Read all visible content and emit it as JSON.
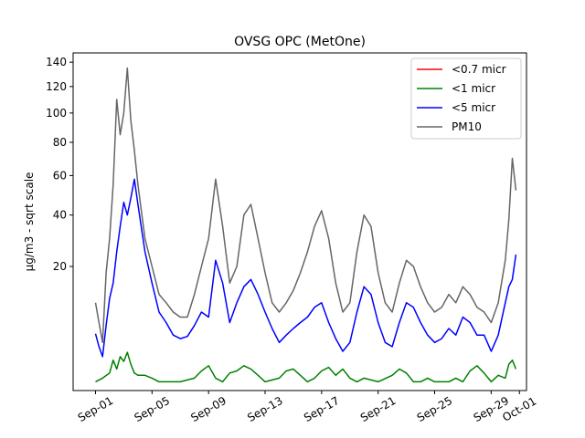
{
  "chart_data": {
    "type": "line",
    "title": "OVSG OPC (MetOne)",
    "xlabel": "",
    "ylabel": "µg/m3 - sqrt scale",
    "y_scale": "sqrt",
    "ylim": [
      0,
      148
    ],
    "y_ticks": [
      20,
      40,
      60,
      80,
      100,
      120,
      140
    ],
    "xlim": [
      "2021-08-30T10:00",
      "2021-10-01T12:00"
    ],
    "x_ticks": [
      "Sep-01",
      "Sep-05",
      "Sep-09",
      "Sep-13",
      "Sep-17",
      "Sep-21",
      "Sep-25",
      "Sep-29",
      "Oct-01"
    ],
    "x_tick_dates": [
      "2021-09-01",
      "2021-09-05",
      "2021-09-09",
      "2021-09-13",
      "2021-09-17",
      "2021-09-21",
      "2021-09-25",
      "2021-09-29",
      "2021-10-01"
    ],
    "grid": false,
    "legend_position": "top-right",
    "series": [
      {
        "name": "<0.7 micr",
        "color": "#ff0000",
        "x": [],
        "values": []
      },
      {
        "name": "<1 micr",
        "color": "#008000",
        "x": [
          "2021-09-01T00:00",
          "2021-09-01T12:00",
          "2021-09-02T00:00",
          "2021-09-02T06:00",
          "2021-09-02T12:00",
          "2021-09-02T18:00",
          "2021-09-03T00:00",
          "2021-09-03T06:00",
          "2021-09-03T12:00",
          "2021-09-03T18:00",
          "2021-09-04T00:00",
          "2021-09-04T12:00",
          "2021-09-05T00:00",
          "2021-09-05T12:00",
          "2021-09-06T00:00",
          "2021-09-07T00:00",
          "2021-09-08T00:00",
          "2021-09-08T12:00",
          "2021-09-09T00:00",
          "2021-09-09T12:00",
          "2021-09-10T00:00",
          "2021-09-10T12:00",
          "2021-09-11T00:00",
          "2021-09-11T12:00",
          "2021-09-12T00:00",
          "2021-09-12T12:00",
          "2021-09-13T00:00",
          "2021-09-14T00:00",
          "2021-09-14T12:00",
          "2021-09-15T00:00",
          "2021-09-15T12:00",
          "2021-09-16T00:00",
          "2021-09-16T12:00",
          "2021-09-17T00:00",
          "2021-09-17T12:00",
          "2021-09-18T00:00",
          "2021-09-18T12:00",
          "2021-09-19T00:00",
          "2021-09-19T12:00",
          "2021-09-20T00:00",
          "2021-09-21T00:00",
          "2021-09-22T00:00",
          "2021-09-22T12:00",
          "2021-09-23T00:00",
          "2021-09-23T12:00",
          "2021-09-24T00:00",
          "2021-09-24T12:00",
          "2021-09-25T00:00",
          "2021-09-26T00:00",
          "2021-09-26T12:00",
          "2021-09-27T00:00",
          "2021-09-27T12:00",
          "2021-09-28T00:00",
          "2021-09-28T12:00",
          "2021-09-29T00:00",
          "2021-09-29T12:00",
          "2021-09-30T00:00",
          "2021-09-30T06:00",
          "2021-09-30T12:00",
          "2021-09-30T18:00"
        ],
        "values": [
          0.1,
          0.2,
          0.4,
          1.2,
          0.6,
          1.5,
          1.1,
          1.9,
          0.9,
          0.4,
          0.3,
          0.3,
          0.2,
          0.1,
          0.1,
          0.1,
          0.2,
          0.5,
          0.8,
          0.2,
          0.1,
          0.4,
          0.5,
          0.8,
          0.6,
          0.3,
          0.1,
          0.2,
          0.5,
          0.6,
          0.3,
          0.1,
          0.2,
          0.5,
          0.7,
          0.3,
          0.6,
          0.2,
          0.1,
          0.2,
          0.1,
          0.3,
          0.6,
          0.4,
          0.1,
          0.1,
          0.2,
          0.1,
          0.1,
          0.2,
          0.1,
          0.5,
          0.8,
          0.4,
          0.1,
          0.3,
          0.2,
          0.9,
          1.2,
          0.6
        ]
      },
      {
        "name": "<5 micr",
        "color": "#0000ff",
        "x": [
          "2021-09-01T00:00",
          "2021-09-01T06:00",
          "2021-09-01T12:00",
          "2021-09-01T18:00",
          "2021-09-02T00:00",
          "2021-09-02T06:00",
          "2021-09-02T12:00",
          "2021-09-02T18:00",
          "2021-09-03T00:00",
          "2021-09-03T06:00",
          "2021-09-03T12:00",
          "2021-09-03T18:00",
          "2021-09-04T00:00",
          "2021-09-04T12:00",
          "2021-09-05T00:00",
          "2021-09-05T12:00",
          "2021-09-06T00:00",
          "2021-09-06T12:00",
          "2021-09-07T00:00",
          "2021-09-07T12:00",
          "2021-09-08T00:00",
          "2021-09-08T12:00",
          "2021-09-09T00:00",
          "2021-09-09T12:00",
          "2021-09-10T00:00",
          "2021-09-10T12:00",
          "2021-09-11T00:00",
          "2021-09-11T12:00",
          "2021-09-12T00:00",
          "2021-09-12T12:00",
          "2021-09-13T00:00",
          "2021-09-13T12:00",
          "2021-09-14T00:00",
          "2021-09-14T12:00",
          "2021-09-15T00:00",
          "2021-09-15T12:00",
          "2021-09-16T00:00",
          "2021-09-16T12:00",
          "2021-09-17T00:00",
          "2021-09-17T12:00",
          "2021-09-18T00:00",
          "2021-09-18T12:00",
          "2021-09-19T00:00",
          "2021-09-19T12:00",
          "2021-09-20T00:00",
          "2021-09-20T12:00",
          "2021-09-21T00:00",
          "2021-09-21T12:00",
          "2021-09-22T00:00",
          "2021-09-22T12:00",
          "2021-09-23T00:00",
          "2021-09-23T12:00",
          "2021-09-24T00:00",
          "2021-09-24T12:00",
          "2021-09-25T00:00",
          "2021-09-25T12:00",
          "2021-09-26T00:00",
          "2021-09-26T12:00",
          "2021-09-27T00:00",
          "2021-09-27T12:00",
          "2021-09-28T00:00",
          "2021-09-28T12:00",
          "2021-09-29T00:00",
          "2021-09-29T12:00",
          "2021-09-30T00:00",
          "2021-09-30T06:00",
          "2021-09-30T12:00",
          "2021-09-30T18:00"
        ],
        "values": [
          4.2,
          2.5,
          1.5,
          5.5,
          11,
          15,
          25,
          35,
          46,
          40,
          48,
          58,
          45,
          25,
          15,
          8,
          6,
          4,
          3.5,
          3.8,
          5.5,
          8,
          7,
          22,
          15,
          6,
          10,
          14,
          16,
          12,
          8,
          5,
          3,
          4,
          5,
          6,
          7,
          9,
          10,
          6,
          3.5,
          2,
          3,
          8,
          14,
          12,
          6,
          3,
          2.5,
          6,
          10,
          9,
          6,
          4,
          3,
          3.5,
          5,
          4,
          7,
          6,
          4,
          4,
          2,
          4,
          10,
          14,
          16,
          24
        ]
      },
      {
        "name": "PM10",
        "color": "#666666",
        "x": [
          "2021-09-01T00:00",
          "2021-09-01T06:00",
          "2021-09-01T12:00",
          "2021-09-01T18:00",
          "2021-09-02T00:00",
          "2021-09-02T06:00",
          "2021-09-02T12:00",
          "2021-09-02T18:00",
          "2021-09-03T00:00",
          "2021-09-03T06:00",
          "2021-09-03T12:00",
          "2021-09-03T18:00",
          "2021-09-04T00:00",
          "2021-09-04T12:00",
          "2021-09-05T00:00",
          "2021-09-05T12:00",
          "2021-09-06T00:00",
          "2021-09-06T12:00",
          "2021-09-07T00:00",
          "2021-09-07T12:00",
          "2021-09-08T00:00",
          "2021-09-08T12:00",
          "2021-09-09T00:00",
          "2021-09-09T12:00",
          "2021-09-10T00:00",
          "2021-09-10T12:00",
          "2021-09-11T00:00",
          "2021-09-11T12:00",
          "2021-09-12T00:00",
          "2021-09-12T12:00",
          "2021-09-13T00:00",
          "2021-09-13T12:00",
          "2021-09-14T00:00",
          "2021-09-14T12:00",
          "2021-09-15T00:00",
          "2021-09-15T12:00",
          "2021-09-16T00:00",
          "2021-09-16T12:00",
          "2021-09-17T00:00",
          "2021-09-17T12:00",
          "2021-09-18T00:00",
          "2021-09-18T12:00",
          "2021-09-19T00:00",
          "2021-09-19T12:00",
          "2021-09-20T00:00",
          "2021-09-20T12:00",
          "2021-09-21T00:00",
          "2021-09-21T12:00",
          "2021-09-22T00:00",
          "2021-09-22T12:00",
          "2021-09-23T00:00",
          "2021-09-23T12:00",
          "2021-09-24T00:00",
          "2021-09-24T12:00",
          "2021-09-25T00:00",
          "2021-09-25T12:00",
          "2021-09-26T00:00",
          "2021-09-26T12:00",
          "2021-09-27T00:00",
          "2021-09-27T12:00",
          "2021-09-28T00:00",
          "2021-09-28T12:00",
          "2021-09-29T00:00",
          "2021-09-29T12:00",
          "2021-09-30T00:00",
          "2021-09-30T06:00",
          "2021-09-30T12:00",
          "2021-09-30T18:00"
        ],
        "values": [
          10,
          6,
          3,
          18,
          30,
          55,
          110,
          85,
          100,
          135,
          95,
          75,
          55,
          30,
          20,
          12,
          10,
          8,
          7,
          7,
          12,
          20,
          30,
          58,
          35,
          15,
          20,
          40,
          45,
          30,
          18,
          10,
          8,
          10,
          13,
          18,
          25,
          35,
          42,
          30,
          15,
          8,
          10,
          25,
          40,
          35,
          18,
          10,
          8,
          15,
          22,
          20,
          14,
          10,
          8,
          9,
          12,
          10,
          14,
          12,
          9,
          8,
          6,
          10,
          22,
          38,
          70,
          52
        ]
      }
    ]
  }
}
